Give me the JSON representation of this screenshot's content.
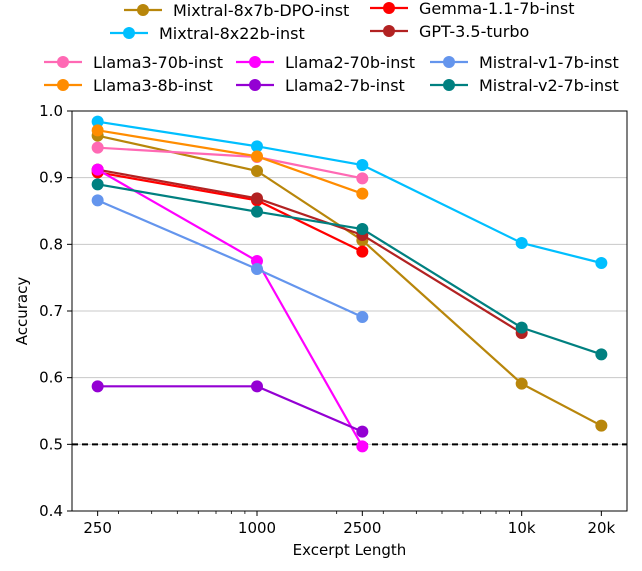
{
  "chart_data": {
    "type": "line",
    "xlabel": "Excerpt Length",
    "ylabel": "Accuracy",
    "x_scale": "log",
    "x": [
      250,
      1000,
      2500,
      10000,
      20000
    ],
    "xtick_labels": [
      "250",
      "1000",
      "2500",
      "10k",
      "20k"
    ],
    "ylim": [
      0.4,
      1.0
    ],
    "yticks": [
      "0.4",
      "0.5",
      "0.6",
      "0.7",
      "0.8",
      "0.9",
      "1.0"
    ],
    "grid": "horizontal",
    "reference_line": {
      "y": 0.5,
      "style": "dashed",
      "color": "#000000"
    },
    "legend_position": "top, outside plot",
    "series": [
      {
        "name": "Mixtral-8x7b-DPO-inst",
        "color": "#b8860b",
        "x": [
          250,
          1000,
          2500,
          10000,
          20000
        ],
        "values": [
          0.963,
          0.91,
          0.806,
          0.591,
          0.528
        ]
      },
      {
        "name": "Mixtral-8x22b-inst",
        "color": "#00bfff",
        "x": [
          250,
          1000,
          2500,
          10000,
          20000
        ],
        "values": [
          0.984,
          0.947,
          0.919,
          0.802,
          0.772
        ]
      },
      {
        "name": "Gemma-1.1-7b-inst",
        "color": "#ff0000",
        "x": [
          250,
          1000,
          2500
        ],
        "values": [
          0.908,
          0.866,
          0.789
        ]
      },
      {
        "name": "GPT-3.5-turbo",
        "color": "#b22222",
        "x": [
          250,
          1000,
          2500,
          10000
        ],
        "values": [
          0.912,
          0.869,
          0.814,
          0.667
        ]
      },
      {
        "name": "Llama3-70b-inst",
        "color": "#ff69b4",
        "x": [
          250,
          1000,
          2500
        ],
        "values": [
          0.945,
          0.931,
          0.899
        ]
      },
      {
        "name": "Llama3-8b-inst",
        "color": "#ff8c00",
        "x": [
          250,
          1000,
          2500
        ],
        "values": [
          0.971,
          0.932,
          0.876
        ]
      },
      {
        "name": "Llama2-70b-inst",
        "color": "#ff00ff",
        "x": [
          250,
          1000,
          2500
        ],
        "values": [
          0.912,
          0.775,
          0.497
        ]
      },
      {
        "name": "Llama2-7b-inst",
        "color": "#9400d3",
        "x": [
          250,
          1000,
          2500
        ],
        "values": [
          0.587,
          0.587,
          0.519
        ]
      },
      {
        "name": "Mistral-v1-7b-inst",
        "color": "#6495ed",
        "x": [
          250,
          1000,
          2500
        ],
        "values": [
          0.866,
          0.763,
          0.691
        ]
      },
      {
        "name": "Mistral-v2-7b-inst",
        "color": "#008080",
        "x": [
          250,
          1000,
          2500,
          10000,
          20000
        ],
        "values": [
          0.89,
          0.849,
          0.823,
          0.675,
          0.635
        ]
      }
    ]
  }
}
